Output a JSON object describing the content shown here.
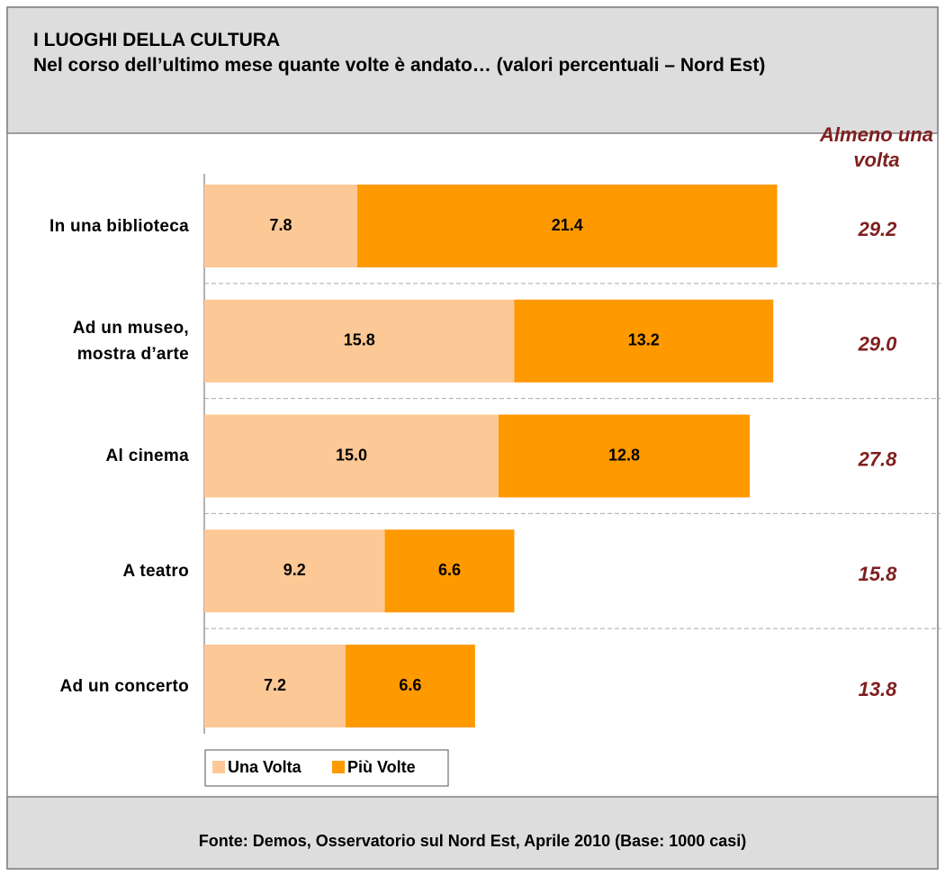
{
  "chart_data": {
    "type": "bar",
    "orientation": "horizontal",
    "stacked": true,
    "title": "I LUOGHI DELLA CULTURA",
    "subtitle": "Nel corso dell’ultimo mese quante volte è andato… (valori percentuali – Nord Est)",
    "categories": [
      "In una biblioteca",
      "Ad un museo,\nmostra d’arte",
      "Al cinema",
      "A teatro",
      "Ad un concerto"
    ],
    "series": [
      {
        "name": "Una Volta",
        "color": "#fcc895",
        "values": [
          7.8,
          15.8,
          15,
          9.2,
          7.2
        ],
        "value_labels": [
          "7.8",
          "15.8",
          "15.0",
          "9.2",
          "7.2"
        ]
      },
      {
        "name": "Più Volte",
        "color": "#ff9900",
        "values": [
          21.4,
          13.2,
          12.8,
          6.6,
          6.6
        ],
        "value_labels": [
          "21.4",
          "13.2",
          "12.8",
          "6.6",
          "6.6"
        ]
      }
    ],
    "totals": {
      "name": "Almeno una volta",
      "color": "#7f1f1f",
      "values": [
        29.2,
        29,
        27.8,
        15.8,
        13.8
      ],
      "value_labels": [
        "29.2",
        "29.0",
        "27.8",
        "15.8",
        "13.8"
      ]
    },
    "source": "Fonte: Demos, Osservatorio sul Nord Est, Aprile 2010 (Base: 1000 casi)"
  }
}
